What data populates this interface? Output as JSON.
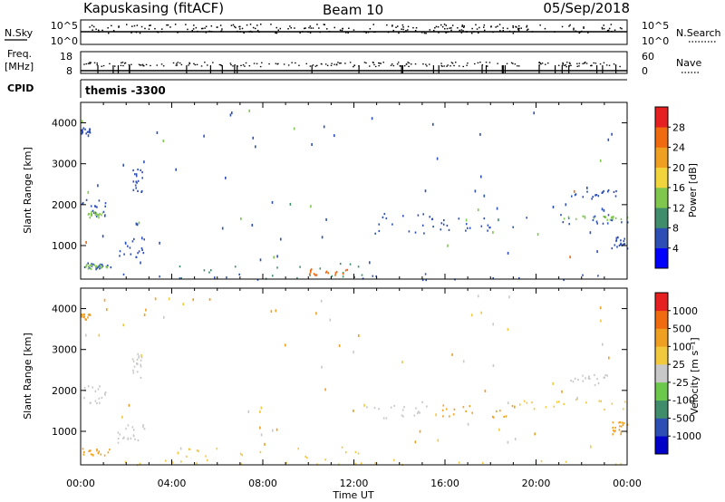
{
  "header": {
    "station": "Kapuskasing (fitACF)",
    "beam": "Beam 10",
    "date": "05/Sep/2018"
  },
  "chart_data": [
    {
      "type": "line",
      "name": "noise-panel",
      "left_label": "N.Sky",
      "right_label": "N.Search",
      "left_ticks": [
        "10^5",
        "10^0"
      ],
      "right_ticks": [
        "10^5",
        "10^0"
      ]
    },
    {
      "type": "line",
      "name": "frequency-panel",
      "left_label": "Freq.",
      "left_unit": "[MHz]",
      "right_label": "Nave",
      "left_ticks": [
        "18",
        "8"
      ],
      "right_ticks": [
        "60",
        "0"
      ]
    },
    {
      "type": "table",
      "name": "cpid-panel",
      "label": "CPID",
      "program": "themis -3300"
    },
    {
      "type": "heatmap",
      "name": "power-panel",
      "ylabel": "Slant Range [km]",
      "ylim": [
        180,
        4500
      ],
      "yticks": [
        "1000",
        "2000",
        "3000",
        "4000"
      ],
      "xlim": [
        0,
        24
      ],
      "colorbar": {
        "title": "Power [dB]",
        "labels": [
          "4",
          "8",
          "12",
          "16",
          "20",
          "24",
          "28"
        ],
        "colors": [
          "#0000ff",
          "#2d4fb5",
          "#3f8d6b",
          "#7fc84d",
          "#f2d43c",
          "#f0a020",
          "#f06a10",
          "#e62020"
        ]
      },
      "regions": [
        {
          "t": [
            0.0,
            1.1
          ],
          "r": [
            1700,
            2150
          ],
          "color": "#2d4fb5"
        },
        {
          "t": [
            0.3,
            1.0
          ],
          "r": [
            1700,
            1850
          ],
          "color": "#7fc84d"
        },
        {
          "t": [
            0.0,
            1.4
          ],
          "r": [
            430,
            600
          ],
          "color": "#2d4fb5"
        },
        {
          "t": [
            0.2,
            1.2
          ],
          "r": [
            450,
            560
          ],
          "color": "#7fc84d"
        },
        {
          "t": [
            1.6,
            2.8
          ],
          "r": [
            700,
            1200
          ],
          "color": "#2d4fb5"
        },
        {
          "t": [
            2.2,
            2.7
          ],
          "r": [
            2300,
            2950
          ],
          "color": "#2d4fb5"
        },
        {
          "t": [
            0.0,
            0.4
          ],
          "r": [
            3750,
            3900
          ],
          "color": "#2d4fb5"
        },
        {
          "t": [
            0.0,
            24.0
          ],
          "r": [
            180,
            330
          ],
          "color": "#2d4fb5"
        },
        {
          "t": [
            4.0,
            13.0
          ],
          "r": [
            200,
            600
          ],
          "color": "#3f8d6b"
        },
        {
          "t": [
            10.0,
            11.8
          ],
          "r": [
            300,
            450
          ],
          "color": "#f06a10"
        },
        {
          "t": [
            12.5,
            15.5
          ],
          "r": [
            1300,
            1800
          ],
          "color": "#2d4fb5"
        },
        {
          "t": [
            15.5,
            19.0
          ],
          "r": [
            1350,
            1700
          ],
          "color": "#2d4fb5"
        },
        {
          "t": [
            19.0,
            24.0
          ],
          "r": [
            1550,
            1800
          ],
          "color": "#2d4fb5"
        },
        {
          "t": [
            21.0,
            24.0
          ],
          "r": [
            1650,
            1750
          ],
          "color": "#7fc84d"
        },
        {
          "t": [
            21.5,
            23.5
          ],
          "r": [
            2150,
            2400
          ],
          "color": "#2d4fb5"
        },
        {
          "t": [
            23.3,
            24.0
          ],
          "r": [
            950,
            1250
          ],
          "color": "#2d4fb5"
        }
      ]
    },
    {
      "type": "heatmap",
      "name": "velocity-panel",
      "ylabel": "Slant Range [km]",
      "ylim": [
        180,
        4500
      ],
      "yticks": [
        "1000",
        "2000",
        "3000",
        "4000"
      ],
      "xlim": [
        0,
        24
      ],
      "xlabel": "Time UT",
      "xticks": [
        "00:00",
        "04:00",
        "08:00",
        "12:00",
        "16:00",
        "20:00",
        "00:00"
      ],
      "colorbar": {
        "title": "Velocity [m s⁻¹]",
        "labels": [
          "1000",
          "500",
          "100",
          "25",
          "-25",
          "-100",
          "-500",
          "-1000"
        ],
        "colors": [
          "#0000c8",
          "#2d4fb5",
          "#3f8d6b",
          "#6cc84d",
          "#c8c8c8",
          "#f2c83c",
          "#f0a020",
          "#f06a10",
          "#e62020"
        ]
      },
      "regions": [
        {
          "t": [
            0.0,
            1.1
          ],
          "r": [
            1700,
            2150
          ],
          "color": "#c8c8c8"
        },
        {
          "t": [
            0.0,
            1.4
          ],
          "r": [
            430,
            600
          ],
          "color": "#f0a020"
        },
        {
          "t": [
            1.6,
            2.8
          ],
          "r": [
            700,
            1200
          ],
          "color": "#c8c8c8"
        },
        {
          "t": [
            2.2,
            2.7
          ],
          "r": [
            2300,
            2950
          ],
          "color": "#c8c8c8"
        },
        {
          "t": [
            0.0,
            0.4
          ],
          "r": [
            3750,
            3900
          ],
          "color": "#f0a020"
        },
        {
          "t": [
            0.0,
            24.0
          ],
          "r": [
            180,
            330
          ],
          "color": "#f2c83c"
        },
        {
          "t": [
            4.0,
            13.0
          ],
          "r": [
            200,
            650
          ],
          "color": "#f2c83c"
        },
        {
          "t": [
            12.5,
            15.5
          ],
          "r": [
            1300,
            1800
          ],
          "color": "#c8c8c8"
        },
        {
          "t": [
            15.5,
            19.0
          ],
          "r": [
            1350,
            1700
          ],
          "color": "#f0a020"
        },
        {
          "t": [
            19.0,
            24.0
          ],
          "r": [
            1550,
            1800
          ],
          "color": "#f2c83c"
        },
        {
          "t": [
            21.5,
            23.5
          ],
          "r": [
            2150,
            2400
          ],
          "color": "#c8c8c8"
        },
        {
          "t": [
            23.3,
            24.0
          ],
          "r": [
            950,
            1250
          ],
          "color": "#f0a020"
        }
      ]
    }
  ]
}
